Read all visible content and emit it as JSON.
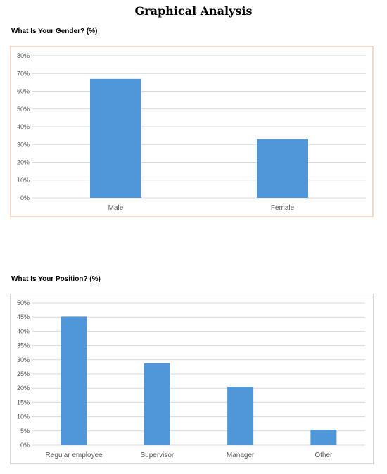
{
  "page_title": "Graphical Analysis",
  "chart_data": [
    {
      "type": "bar",
      "title": "What Is Your Gender? (%)",
      "categories": [
        "Male",
        "Female"
      ],
      "values": [
        67,
        33
      ],
      "ylim": [
        0,
        80
      ],
      "yticks": [
        0,
        10,
        20,
        30,
        40,
        50,
        60,
        70,
        80
      ],
      "ytick_labels": [
        "0%",
        "10%",
        "20%",
        "30%",
        "40%",
        "50%",
        "60%",
        "70%",
        "80%"
      ],
      "grid": true,
      "bar_color": "#4f97d8"
    },
    {
      "type": "bar",
      "title": "What Is Your Position? (%)",
      "categories": [
        "Regular employee",
        "Supervisor",
        "Manager",
        "Other"
      ],
      "values": [
        45.2,
        28.8,
        20.5,
        5.4
      ],
      "ylim": [
        0,
        50
      ],
      "yticks": [
        0,
        5,
        10,
        15,
        20,
        25,
        30,
        35,
        40,
        45,
        50
      ],
      "ytick_labels": [
        "0%",
        "5%",
        "10%",
        "15%",
        "20%",
        "25%",
        "30%",
        "35%",
        "40%",
        "45%",
        "50%"
      ],
      "grid": true,
      "bar_color": "#4f97d8"
    }
  ]
}
